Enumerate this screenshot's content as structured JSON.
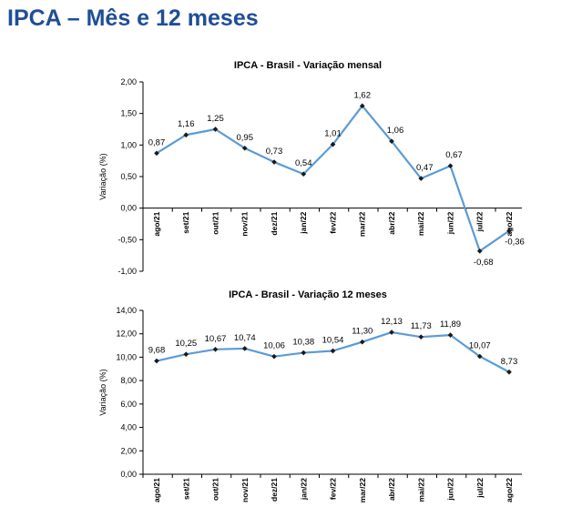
{
  "page": {
    "title": "IPCA – Mês e 12 meses"
  },
  "colors": {
    "title": "#1f4e96",
    "series": "#5b9bd5",
    "marker": "#1a1a1a",
    "axis": "#000000"
  },
  "chart_data": [
    {
      "type": "line",
      "title": "IPCA - Brasil - Variação mensal",
      "xlabel": "",
      "ylabel": "Variação (%)",
      "ylim": [
        -1.0,
        2.0
      ],
      "yticks": [
        -1.0,
        -0.5,
        0.0,
        0.5,
        1.0,
        1.5,
        2.0
      ],
      "ytick_labels": [
        "-1,00",
        "-0,50",
        "0,00",
        "0,50",
        "1,00",
        "1,50",
        "2,00"
      ],
      "categories": [
        "ago/21",
        "set/21",
        "out/21",
        "nov/21",
        "dez/21",
        "jan/22",
        "fev/22",
        "mar/22",
        "abr/22",
        "mai/22",
        "jun/22",
        "jul/22",
        "ago/22"
      ],
      "values": [
        0.87,
        1.16,
        1.25,
        0.95,
        0.73,
        0.54,
        1.01,
        1.62,
        1.06,
        0.47,
        0.67,
        -0.68,
        -0.36
      ],
      "value_labels": [
        "0,87",
        "1,16",
        "1,25",
        "0,95",
        "0,73",
        "0,54",
        "1,01",
        "1,62",
        "1,06",
        "0,47",
        "0,67",
        "-0,68",
        "-0,36"
      ],
      "grid": false,
      "x_axis_at_zero": true
    },
    {
      "type": "line",
      "title": "IPCA - Brasil - Variação 12 meses",
      "xlabel": "",
      "ylabel": "Variação (%)",
      "ylim": [
        0.0,
        14.0
      ],
      "yticks": [
        0,
        2,
        4,
        6,
        8,
        10,
        12,
        14
      ],
      "ytick_labels": [
        "0,00",
        "2,00",
        "4,00",
        "6,00",
        "8,00",
        "10,00",
        "12,00",
        "14,00"
      ],
      "categories": [
        "ago/21",
        "set/21",
        "out/21",
        "nov/21",
        "dez/21",
        "jan/22",
        "fev/22",
        "mar/22",
        "abr/22",
        "mai/22",
        "jun/22",
        "jul/22",
        "ago/22"
      ],
      "values": [
        9.68,
        10.25,
        10.67,
        10.74,
        10.06,
        10.38,
        10.54,
        11.3,
        12.13,
        11.73,
        11.89,
        10.07,
        8.73
      ],
      "value_labels": [
        "9,68",
        "10,25",
        "10,67",
        "10,74",
        "10,06",
        "10,38",
        "10,54",
        "11,30",
        "12,13",
        "11,73",
        "11,89",
        "10,07",
        "8,73"
      ],
      "grid": false,
      "x_axis_at_zero": true
    }
  ]
}
